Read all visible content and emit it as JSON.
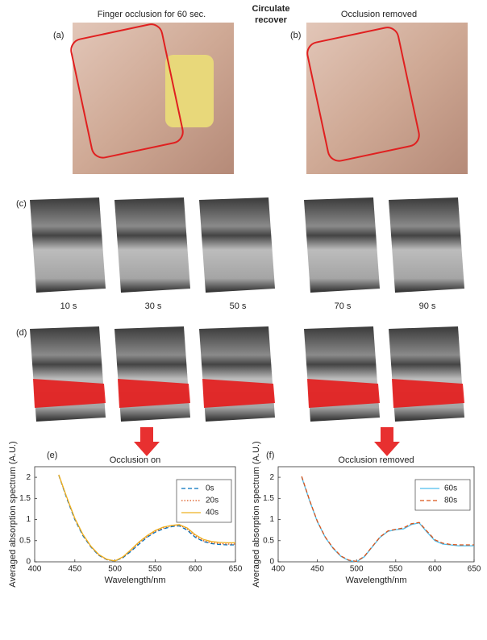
{
  "header": {
    "left": "Finger occlusion for 60 sec.",
    "center": [
      "Circulate",
      "recover"
    ],
    "right": "Occlusion removed"
  },
  "panel_labels": [
    "(a)",
    "(b)",
    "(c)",
    "(d)",
    "(e)",
    "(f)"
  ],
  "time_labels": [
    "10 s",
    "30 s",
    "50 s",
    "70 s",
    "90 s"
  ],
  "chart_data": [
    {
      "type": "line",
      "title": "Occlusion on",
      "xlabel": "Wavelength/nm",
      "ylabel": "Averaged absorption spectrum (A.U.)",
      "xlim": [
        400,
        650
      ],
      "ylim": [
        0,
        2.25
      ],
      "xticks": [
        400,
        450,
        500,
        550,
        600,
        650
      ],
      "yticks": [
        0,
        0.5,
        1,
        1.5,
        2
      ],
      "legend": "upper right",
      "x": [
        430,
        440,
        450,
        460,
        470,
        480,
        490,
        500,
        510,
        520,
        530,
        540,
        550,
        560,
        570,
        580,
        590,
        600,
        610,
        620,
        630,
        640,
        650
      ],
      "series": [
        {
          "name": "0s",
          "color": "#0072bd",
          "dash": "dashed",
          "values": [
            2.05,
            1.5,
            1.0,
            0.62,
            0.35,
            0.15,
            0.05,
            0.02,
            0.1,
            0.25,
            0.42,
            0.58,
            0.7,
            0.78,
            0.83,
            0.85,
            0.75,
            0.58,
            0.48,
            0.43,
            0.41,
            0.4,
            0.4
          ]
        },
        {
          "name": "20s",
          "color": "#d95319",
          "dash": "dotted",
          "values": [
            2.05,
            1.52,
            1.02,
            0.64,
            0.36,
            0.16,
            0.05,
            0.02,
            0.11,
            0.27,
            0.45,
            0.6,
            0.72,
            0.8,
            0.85,
            0.87,
            0.78,
            0.61,
            0.5,
            0.45,
            0.43,
            0.42,
            0.42
          ]
        },
        {
          "name": "40s",
          "color": "#edb120",
          "dash": "solid",
          "values": [
            2.06,
            1.53,
            1.03,
            0.65,
            0.37,
            0.17,
            0.06,
            0.02,
            0.12,
            0.29,
            0.47,
            0.62,
            0.74,
            0.82,
            0.86,
            0.88,
            0.8,
            0.64,
            0.53,
            0.48,
            0.46,
            0.45,
            0.45
          ]
        }
      ]
    },
    {
      "type": "line",
      "title": "Occlusion removed",
      "xlabel": "Wavelength/nm",
      "ylabel": "Averaged absorption spectrum (A.U.)",
      "xlim": [
        400,
        650
      ],
      "ylim": [
        0,
        2.25
      ],
      "xticks": [
        400,
        450,
        500,
        550,
        600,
        650
      ],
      "yticks": [
        0,
        0.5,
        1,
        1.5,
        2
      ],
      "legend": "upper right",
      "x": [
        430,
        440,
        450,
        460,
        470,
        480,
        490,
        500,
        510,
        520,
        530,
        540,
        550,
        560,
        570,
        580,
        590,
        600,
        610,
        620,
        630,
        640,
        650
      ],
      "series": [
        {
          "name": "60s",
          "color": "#4dbeee",
          "dash": "solid",
          "values": [
            2.0,
            1.45,
            0.95,
            0.58,
            0.32,
            0.13,
            0.03,
            0.0,
            0.12,
            0.35,
            0.58,
            0.72,
            0.76,
            0.78,
            0.88,
            0.92,
            0.7,
            0.5,
            0.42,
            0.4,
            0.38,
            0.38,
            0.38
          ]
        },
        {
          "name": "80s",
          "color": "#d95319",
          "dash": "dashed",
          "values": [
            2.02,
            1.46,
            0.96,
            0.59,
            0.33,
            0.14,
            0.04,
            0.01,
            0.13,
            0.36,
            0.59,
            0.73,
            0.77,
            0.8,
            0.9,
            0.93,
            0.72,
            0.52,
            0.44,
            0.41,
            0.4,
            0.4,
            0.4
          ]
        }
      ]
    }
  ]
}
